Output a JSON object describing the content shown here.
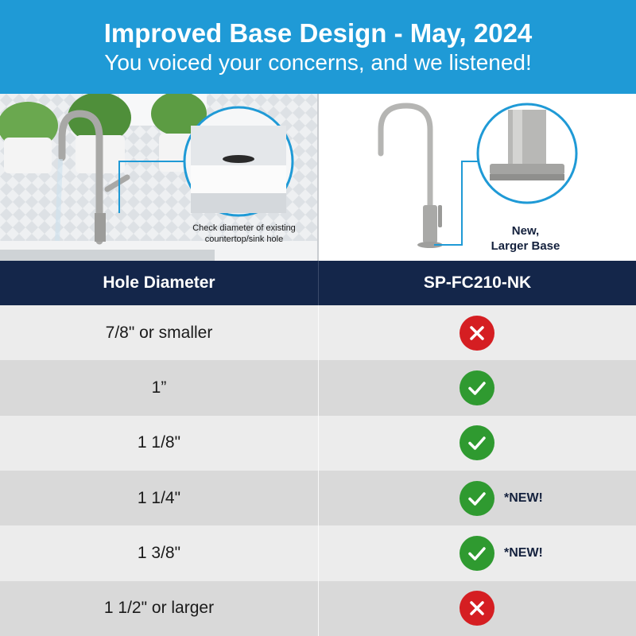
{
  "header": {
    "title": "Improved Base Design - May, 2024",
    "subtitle": "You voiced your concerns, and we listened!",
    "background_color": "#1f9ad6"
  },
  "photos": {
    "left": {
      "caption": "Check diameter of  existing countertop/sink hole",
      "image_content": "kitchen sink faucet with zoom circle on countertop hole"
    },
    "right": {
      "caption_line1": "New,",
      "caption_line2": "Larger Base",
      "image_content": "brushed nickel drinking water faucet with zoom circle on base"
    }
  },
  "table": {
    "header_color": "#14264a",
    "columns": [
      "Hole Diameter",
      "SP-FC210-NK"
    ],
    "rows": [
      {
        "diameter": "7/8\" or smaller",
        "status": "no",
        "icon": "x-icon",
        "note": ""
      },
      {
        "diameter": "1”",
        "status": "yes",
        "icon": "check-icon",
        "note": ""
      },
      {
        "diameter": "1 1/8\"",
        "status": "yes",
        "icon": "check-icon",
        "note": ""
      },
      {
        "diameter": "1 1/4\"",
        "status": "yes",
        "icon": "check-icon",
        "note": "*NEW!"
      },
      {
        "diameter": "1 3/8\"",
        "status": "yes",
        "icon": "check-icon",
        "note": "*NEW!"
      },
      {
        "diameter": "1 1/2\" or larger",
        "status": "no",
        "icon": "x-icon",
        "note": ""
      }
    ],
    "colors": {
      "no": "#d51e22",
      "yes": "#2f9a30"
    }
  }
}
